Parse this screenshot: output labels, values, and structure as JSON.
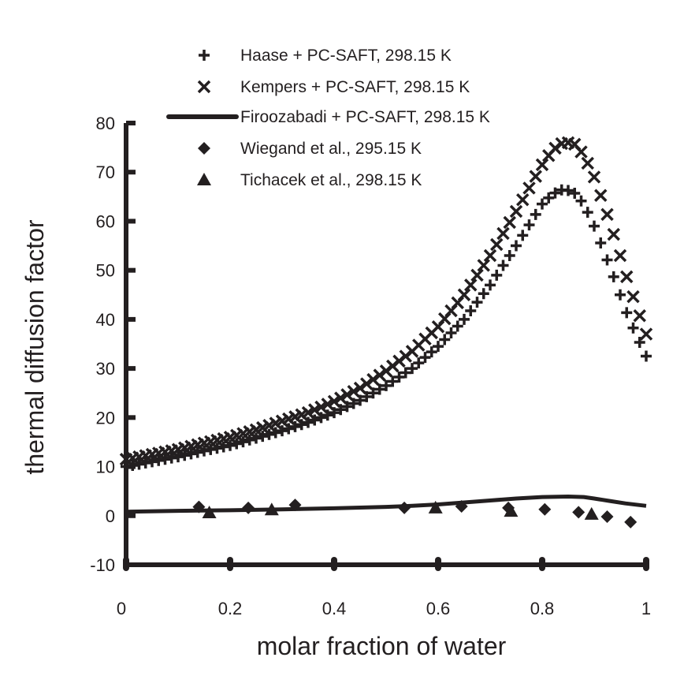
{
  "chart_data": {
    "type": "scatter",
    "title": "",
    "xlabel": "molar fraction of water",
    "ylabel": "thermal diffusion factor",
    "xlim": [
      0,
      1
    ],
    "ylim": [
      -10,
      80
    ],
    "xticks": [
      "0",
      "0.2",
      "0.4",
      "0.6",
      "0.8",
      "1"
    ],
    "yticks": [
      "-10",
      "0",
      "10",
      "20",
      "30",
      "40",
      "50",
      "60",
      "70",
      "80"
    ],
    "legend_position": "top-right",
    "series": [
      {
        "name": "Haase + PC-SAFT, 298.15 K",
        "marker": "plus",
        "x": [
          0.0,
          0.05,
          0.1,
          0.15,
          0.2,
          0.25,
          0.3,
          0.35,
          0.4,
          0.45,
          0.5,
          0.55,
          0.6,
          0.65,
          0.7,
          0.75,
          0.8,
          0.82,
          0.84,
          0.86,
          0.88,
          0.9,
          0.92,
          0.94,
          0.96,
          0.98,
          1.0
        ],
        "y": [
          10.0,
          11.0,
          12.0,
          13.2,
          14.3,
          15.8,
          17.3,
          19.0,
          21.0,
          23.5,
          26.5,
          30.0,
          34.5,
          40.0,
          47.0,
          55.0,
          63.5,
          65.5,
          66.5,
          66.0,
          63.5,
          59.0,
          53.5,
          48.0,
          42.0,
          37.0,
          32.5
        ]
      },
      {
        "name": "Kempers + PC-SAFT, 298.15 K",
        "marker": "cross",
        "x": [
          0.0,
          0.05,
          0.1,
          0.15,
          0.2,
          0.25,
          0.3,
          0.35,
          0.4,
          0.45,
          0.5,
          0.55,
          0.6,
          0.65,
          0.7,
          0.75,
          0.8,
          0.82,
          0.84,
          0.86,
          0.88,
          0.9,
          0.92,
          0.94,
          0.96,
          0.98,
          1.0
        ],
        "y": [
          11.5,
          12.5,
          13.5,
          14.8,
          16.0,
          17.5,
          19.3,
          21.0,
          23.3,
          26.0,
          29.5,
          33.5,
          38.5,
          45.0,
          53.0,
          62.0,
          71.5,
          74.5,
          76.0,
          76.0,
          73.5,
          69.0,
          63.0,
          56.5,
          49.5,
          43.0,
          37.0
        ]
      },
      {
        "name": "Firoozabadi + PC-SAFT, 298.15 K",
        "marker": "line",
        "x": [
          0.0,
          0.1,
          0.2,
          0.3,
          0.4,
          0.5,
          0.55,
          0.6,
          0.65,
          0.7,
          0.75,
          0.8,
          0.85,
          0.88,
          0.9,
          0.93,
          0.96,
          1.0
        ],
        "y": [
          0.8,
          1.0,
          1.1,
          1.3,
          1.5,
          1.8,
          2.0,
          2.3,
          2.7,
          3.1,
          3.5,
          3.8,
          3.9,
          3.8,
          3.5,
          3.0,
          2.5,
          2.0
        ]
      },
      {
        "name": "Wiegand et al., 295.15 K",
        "marker": "diamond",
        "x": [
          0.14,
          0.235,
          0.325,
          0.535,
          0.645,
          0.735,
          0.805,
          0.87,
          0.925,
          0.97
        ],
        "y": [
          1.8,
          1.6,
          2.2,
          1.6,
          1.9,
          1.6,
          1.3,
          0.7,
          -0.2,
          -1.3
        ]
      },
      {
        "name": "Tichacek et al., 298.15 K",
        "marker": "triangle",
        "x": [
          0.16,
          0.28,
          0.595,
          0.74,
          0.895
        ],
        "y": [
          0.6,
          1.2,
          1.6,
          0.9,
          0.3
        ]
      }
    ]
  }
}
